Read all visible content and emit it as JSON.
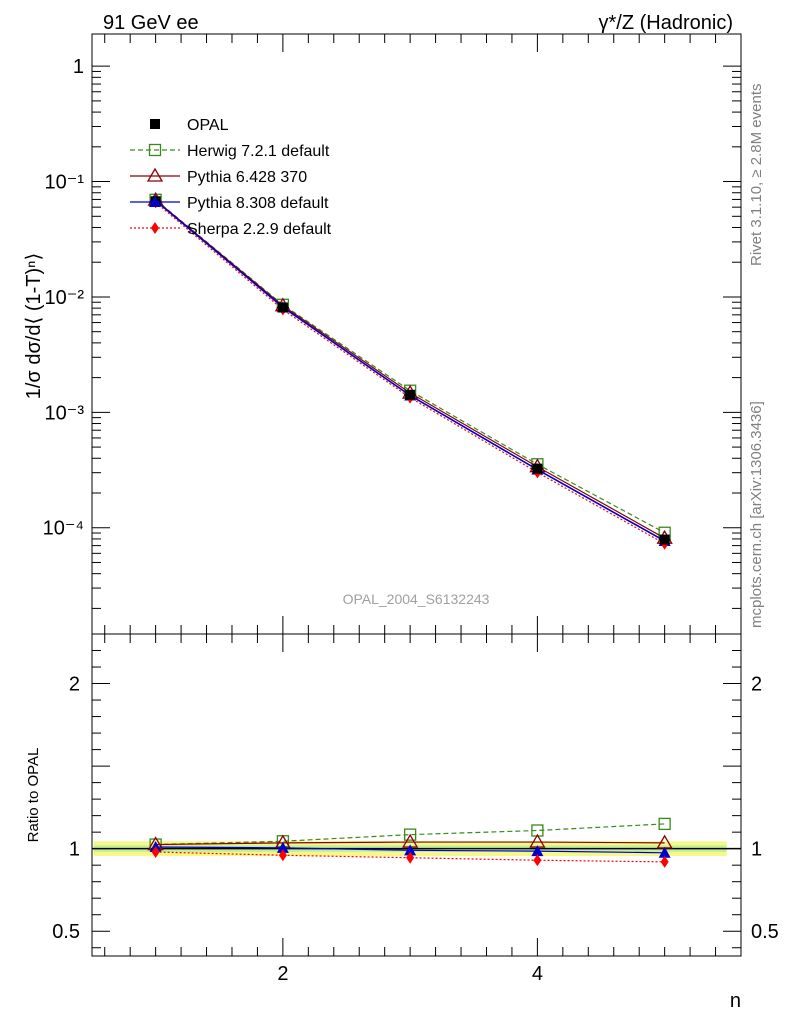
{
  "header": {
    "left_label": "91 GeV ee",
    "right_label": "γ*/Z (Hadronic)"
  },
  "side_labels": {
    "rivet": "Rivet 3.1.10, ≥ 2.8M events",
    "mcplots": "mcplots.cern.ch [arXiv:1306.3436]"
  },
  "watermark": "OPAL_2004_S6132243",
  "colors": {
    "opal": "#000000",
    "herwig": "#3a8a1a",
    "pythia6": "#8b0000",
    "pythia8": "#0000cc",
    "sherpa": "#ff0000",
    "band_outer": "#f6f98a",
    "band_inner": "#c5ef96"
  },
  "chart_data": [
    {
      "type": "line",
      "panel": "main",
      "ylabel": "1/σ dσ/d⟨ (1-T)ⁿ⟩",
      "xlabel": "",
      "log_y": true,
      "xlim": [
        0.5,
        5.6
      ],
      "ylim": [
        1.2e-05,
        1.9
      ],
      "y_tick_labels": [
        "10⁻⁴",
        "10⁻³",
        "10⁻²",
        "10⁻¹",
        "1"
      ],
      "legend_position": "top-left",
      "x": [
        1,
        2,
        3,
        4,
        5
      ],
      "series": [
        {
          "name": "OPAL",
          "key": "opal",
          "style": "marker",
          "values": [
            0.0675,
            0.0081,
            0.00142,
            0.000325,
            7.9e-05
          ]
        },
        {
          "name": "Herwig 7.2.1 default",
          "key": "herwig",
          "style": "dashed",
          "values": [
            0.0695,
            0.00855,
            0.00154,
            0.000355,
            9.05e-05
          ]
        },
        {
          "name": "Pythia 6.428 370",
          "key": "pythia6",
          "style": "solid",
          "values": [
            0.069,
            0.0084,
            0.00147,
            0.000338,
            8.12e-05
          ]
        },
        {
          "name": "Pythia 8.308 default",
          "key": "pythia8",
          "style": "solid",
          "values": [
            0.0683,
            0.00815,
            0.0014,
            0.000319,
            7.68e-05
          ]
        },
        {
          "name": "Sherpa 2.2.9 default",
          "key": "sherpa",
          "style": "dotted",
          "values": [
            0.066,
            0.00778,
            0.00134,
            0.000302,
            7.27e-05
          ]
        }
      ]
    },
    {
      "type": "line",
      "panel": "ratio",
      "ylabel": "Ratio to OPAL",
      "xlabel": "n",
      "xlim": [
        0.5,
        5.6
      ],
      "ylim": [
        0.35,
        2.3
      ],
      "y_tick_labels": [
        "0.5",
        "1",
        "2"
      ],
      "x_tick_labels": [
        "2",
        "4"
      ],
      "x": [
        1,
        2,
        3,
        4,
        5
      ],
      "band": {
        "inner": 0.02,
        "outer": 0.045
      },
      "series": [
        {
          "name": "Herwig 7.2.1 default",
          "key": "herwig",
          "values": [
            1.025,
            1.045,
            1.085,
            1.11,
            1.15
          ]
        },
        {
          "name": "Pythia 6.428 370",
          "key": "pythia6",
          "values": [
            1.025,
            1.035,
            1.04,
            1.04,
            1.035
          ]
        },
        {
          "name": "Pythia 8.308 default",
          "key": "pythia8",
          "values": [
            1.01,
            1.005,
            0.99,
            0.985,
            0.975
          ]
        },
        {
          "name": "Sherpa 2.2.9 default",
          "key": "sherpa",
          "values": [
            0.98,
            0.96,
            0.945,
            0.93,
            0.92
          ]
        }
      ]
    }
  ]
}
